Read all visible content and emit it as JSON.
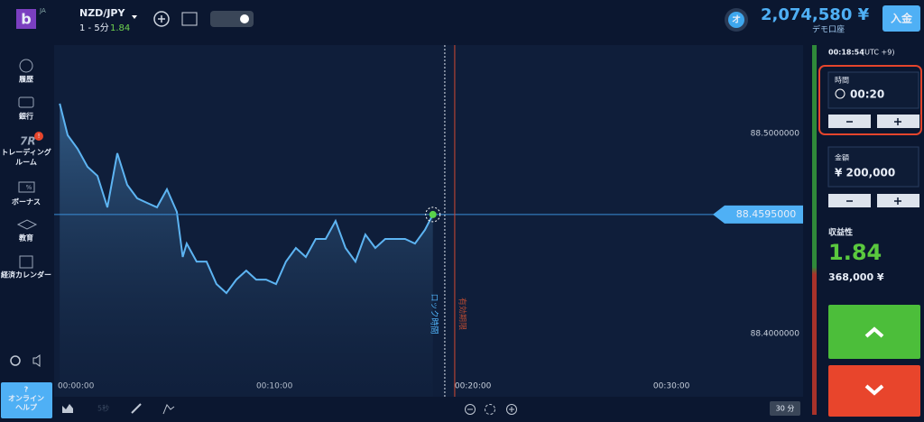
{
  "header": {
    "logo": "b",
    "lang": "JA",
    "pair": "NZD/JPY",
    "timeframe": "1 - 5分",
    "payout": "1.84",
    "avatar": "オ",
    "balance": "2,074,580 ¥",
    "account": "デモ口座",
    "deposit": "入金"
  },
  "sidebar": {
    "items": [
      [
        "履歴"
      ],
      [
        "銀行"
      ],
      [
        "トレーディング",
        "ルーム"
      ],
      [
        "ボーナス"
      ],
      [
        "教育"
      ],
      [
        "経済カレンダー"
      ]
    ],
    "badge": "!",
    "bonus_icon": "%",
    "help": [
      "?",
      "オンライン",
      "ヘルプ"
    ]
  },
  "chart_data": {
    "type": "line",
    "color": "#5db4f2",
    "x": [
      0.1,
      0.5,
      1.0,
      1.5,
      2.0,
      2.5,
      3.0,
      3.5,
      4.0,
      4.5,
      5.0,
      5.5,
      6.0,
      6.3,
      6.5,
      7.0,
      7.5,
      8.0,
      8.5,
      9.0,
      9.5,
      10.0,
      10.5,
      11.0,
      11.5,
      12.0,
      12.5,
      13.0,
      13.5,
      14.0,
      14.5,
      15.0,
      15.5,
      16.0,
      16.5,
      17.0,
      17.5,
      18.0,
      18.5,
      18.9
    ],
    "values": [
      88.5149,
      88.4991,
      88.4923,
      88.4833,
      88.4788,
      88.4631,
      88.4901,
      88.4743,
      88.4676,
      88.4653,
      88.4631,
      88.4721,
      88.4608,
      88.4383,
      88.445,
      88.436,
      88.436,
      88.4248,
      88.4203,
      88.427,
      88.4315,
      88.427,
      88.427,
      88.4248,
      88.436,
      88.4428,
      88.4383,
      88.4473,
      88.4473,
      88.4563,
      88.4428,
      88.436,
      88.4495,
      88.4428,
      88.4473,
      88.4473,
      88.4473,
      88.445,
      88.4518,
      88.4595
    ],
    "xlim": [
      -0.18,
      37.55
    ],
    "ylim": [
      88.3685,
      88.5441
    ],
    "xticks": [
      {
        "value": 0,
        "label": "00:00:00"
      },
      {
        "value": 10,
        "label": "00:10:00"
      },
      {
        "value": 20,
        "label": "00:20:00"
      },
      {
        "value": 30,
        "label": "00:30:00"
      }
    ],
    "yticks": [
      {
        "value": 88.5,
        "label": "88.5000000"
      },
      {
        "value": 88.4,
        "label": "88.4000000"
      }
    ],
    "current_price": {
      "value": 88.4595,
      "label": "88.4595000"
    },
    "lock_line": {
      "x": 19.5,
      "label": "ロック時間"
    },
    "expiry_line": {
      "x": 20,
      "label": "有効期限"
    }
  },
  "toolbar": {
    "interval": "5秒",
    "period": "30 分"
  },
  "trade_panel": {
    "clock": "00:18:54",
    "timezone": "(UTC +9)",
    "time_label": "時間",
    "time": "00:20",
    "amount_label": "金額",
    "amount": "¥ 200,000",
    "profit_label": "収益性",
    "profit_rate": "1.84",
    "profit": "368,000 ¥"
  }
}
